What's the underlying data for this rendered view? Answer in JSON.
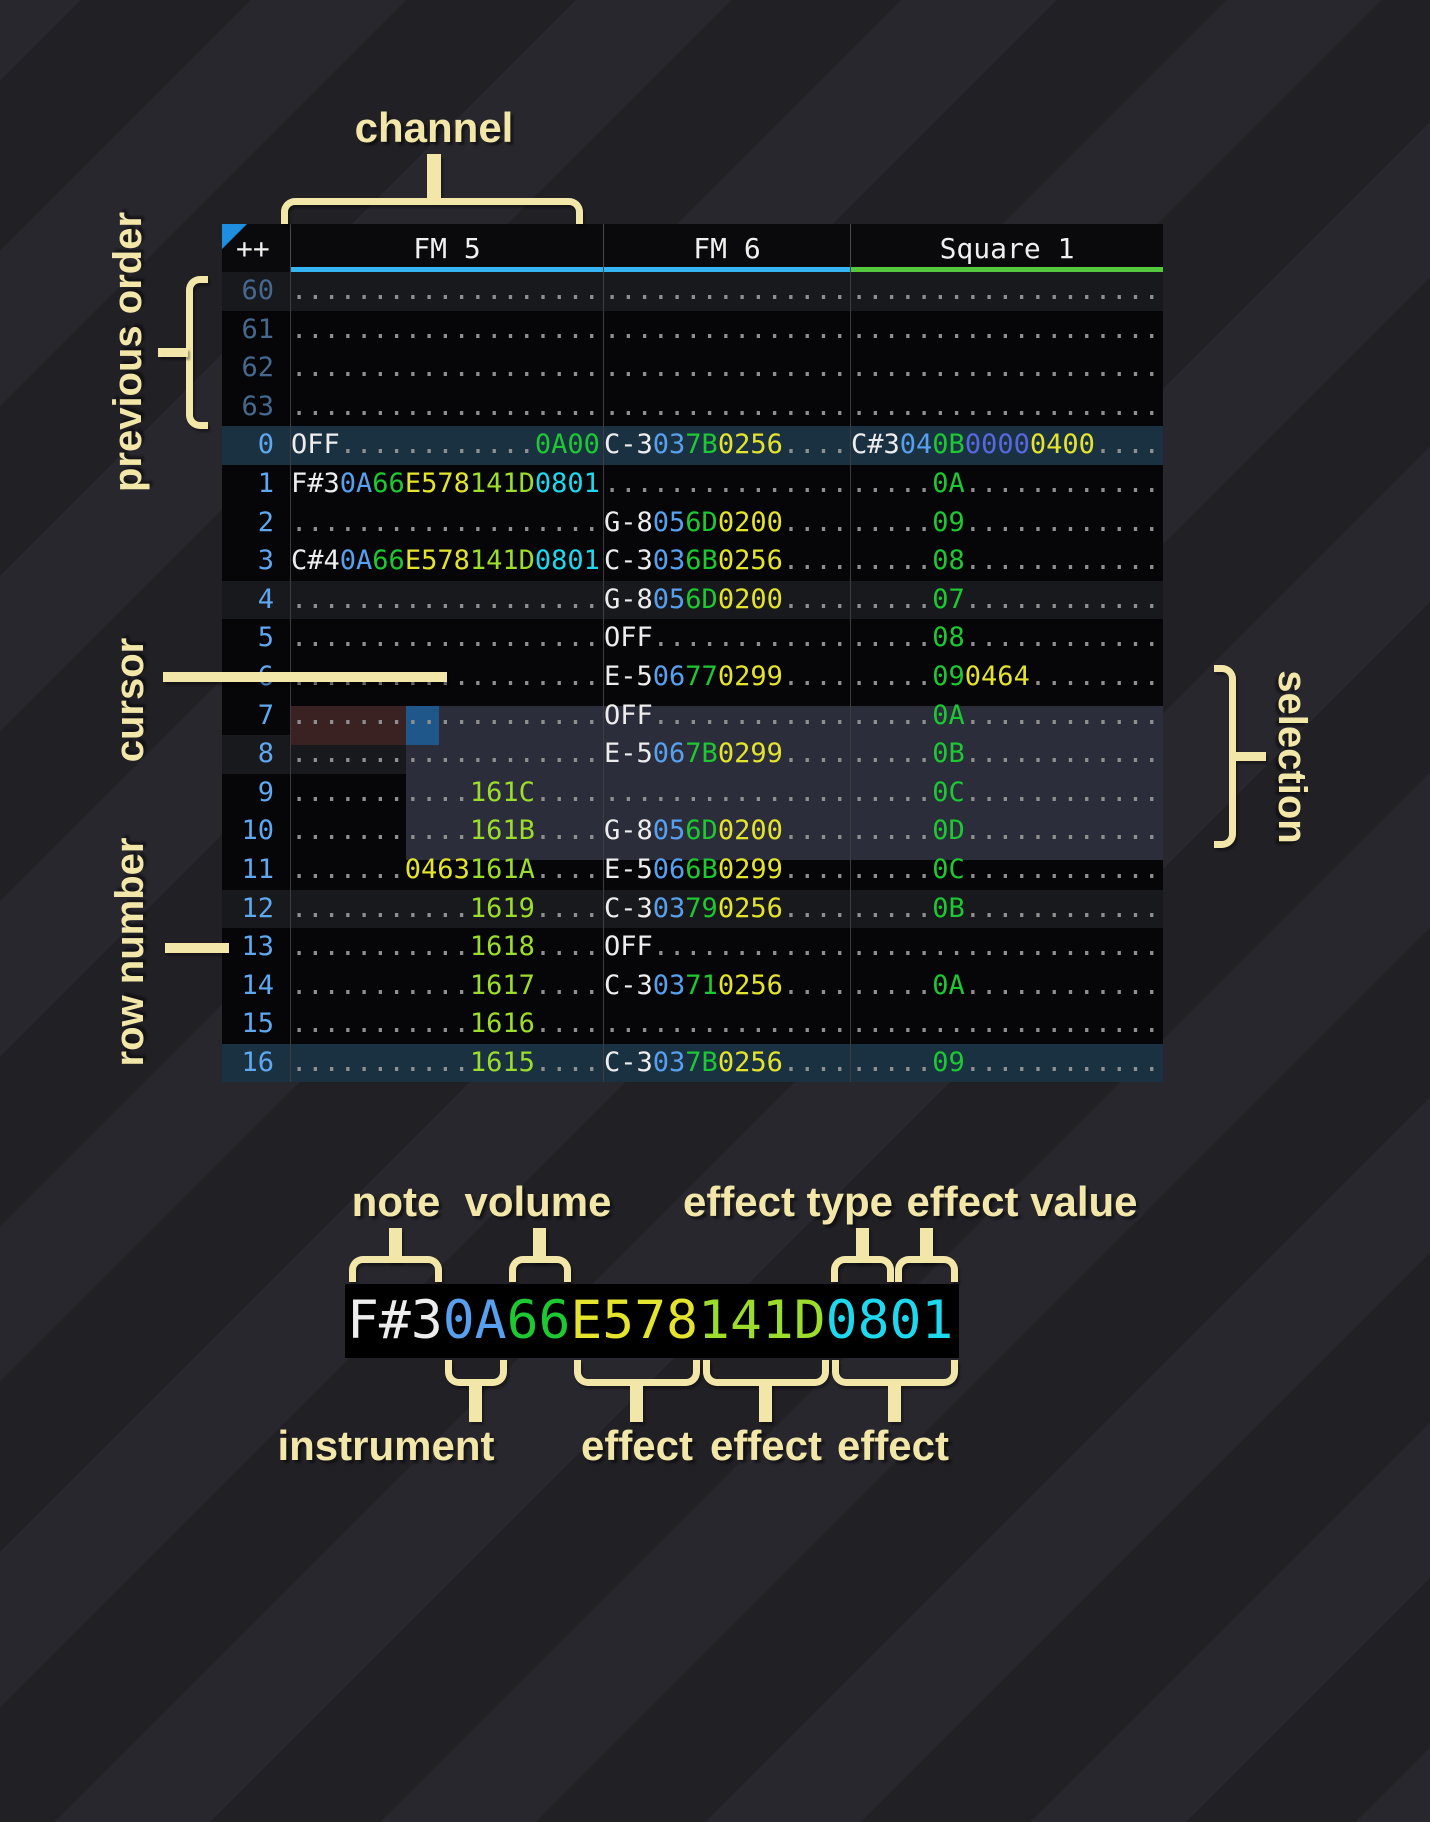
{
  "annotations": {
    "channel": "channel",
    "previous_order": "previous order",
    "cursor": "cursor",
    "row_number": "row number",
    "selection": "selection",
    "note": "note",
    "volume": "volume",
    "effect_type": "effect type",
    "effect_value": "effect value",
    "instrument": "instrument",
    "effect1": "effect",
    "effect2": "effect",
    "effect3": "effect"
  },
  "colors": {
    "accent_annotation": "#f2e7a9",
    "row_number": "#5fa8f0",
    "row_number_prev": "#45698e",
    "note": "#ededed",
    "instrument": "#58a0ee",
    "volume": "#1dc832",
    "effect_yellow": "#e4e42e",
    "effect_green": "#9cdc2c",
    "effect_cyan": "#1ed8ee",
    "effect_indigo": "#5668dc",
    "empty_dot": "#8f8f8f",
    "selection_bg": "#2b2d3b",
    "cursor_bg": "#20578a",
    "cursor_row_bg": "#3a2222",
    "row_hl4_bg": "#18191c",
    "row_hl16_bg": "#1a3142",
    "row_bg": "#060608",
    "table_header_bg": "#0a0a0c",
    "grid_line": "#4a4a4a",
    "corner_triangle": "#1e8fe0",
    "underline_fm": "#35b5f2",
    "underline_square": "#55c83e"
  },
  "pattern": {
    "corner": "++",
    "channels": [
      {
        "name": "FM 5",
        "underline": "#35b5f2"
      },
      {
        "name": "FM 6",
        "underline": "#35b5f2"
      },
      {
        "name": "Square 1",
        "underline": "#55c83e"
      }
    ],
    "rows": [
      {
        "num": "60",
        "prev": true,
        "hl": "hl4",
        "cells": [
          [
            [
              "...................",
              "d"
            ]
          ],
          [
            [
              "...............",
              "d"
            ]
          ],
          [
            [
              "...................",
              "d"
            ]
          ]
        ]
      },
      {
        "num": "61",
        "prev": true,
        "hl": "",
        "cells": [
          [
            [
              "...................",
              "d"
            ]
          ],
          [
            [
              "...............",
              "d"
            ]
          ],
          [
            [
              "...................",
              "d"
            ]
          ]
        ]
      },
      {
        "num": "62",
        "prev": true,
        "hl": "",
        "cells": [
          [
            [
              "...................",
              "d"
            ]
          ],
          [
            [
              "...............",
              "d"
            ]
          ],
          [
            [
              "...................",
              "d"
            ]
          ]
        ]
      },
      {
        "num": "63",
        "prev": true,
        "hl": "",
        "cells": [
          [
            [
              "...................",
              "d"
            ]
          ],
          [
            [
              "...............",
              "d"
            ]
          ],
          [
            [
              "...................",
              "d"
            ]
          ]
        ]
      },
      {
        "num": "0",
        "prev": false,
        "hl": "hl16",
        "cells": [
          [
            [
              "OFF",
              "n"
            ],
            [
              "............",
              "d"
            ],
            [
              "0A00",
              "v"
            ]
          ],
          [
            [
              "C-3",
              "n"
            ],
            [
              "03",
              "i"
            ],
            [
              "7B",
              "v"
            ],
            [
              "0256",
              "y"
            ],
            [
              "....",
              "d"
            ]
          ],
          [
            [
              "C#3",
              "n"
            ],
            [
              "04",
              "i"
            ],
            [
              "0B",
              "v"
            ],
            [
              "0000",
              "p"
            ],
            [
              "0400",
              "y"
            ],
            [
              "....",
              "d"
            ]
          ]
        ]
      },
      {
        "num": "1",
        "prev": false,
        "hl": "",
        "cells": [
          [
            [
              "F#3",
              "n"
            ],
            [
              "0A",
              "i"
            ],
            [
              "66",
              "v"
            ],
            [
              "E578",
              "y"
            ],
            [
              "141D",
              "g"
            ],
            [
              "0801",
              "c"
            ]
          ],
          [
            [
              "...............",
              "d"
            ]
          ],
          [
            [
              ".....",
              "d"
            ],
            [
              "0A",
              "v"
            ],
            [
              "............",
              "d"
            ]
          ]
        ]
      },
      {
        "num": "2",
        "prev": false,
        "hl": "",
        "cells": [
          [
            [
              "...................",
              "d"
            ]
          ],
          [
            [
              "G-8",
              "n"
            ],
            [
              "05",
              "i"
            ],
            [
              "6D",
              "v"
            ],
            [
              "0200",
              "y"
            ],
            [
              "....",
              "d"
            ]
          ],
          [
            [
              ".....",
              "d"
            ],
            [
              "09",
              "v"
            ],
            [
              "............",
              "d"
            ]
          ]
        ]
      },
      {
        "num": "3",
        "prev": false,
        "hl": "",
        "cells": [
          [
            [
              "C#4",
              "n"
            ],
            [
              "0A",
              "i"
            ],
            [
              "66",
              "v"
            ],
            [
              "E578",
              "y"
            ],
            [
              "141D",
              "g"
            ],
            [
              "0801",
              "c"
            ]
          ],
          [
            [
              "C-3",
              "n"
            ],
            [
              "03",
              "i"
            ],
            [
              "6B",
              "v"
            ],
            [
              "0256",
              "y"
            ],
            [
              "....",
              "d"
            ]
          ],
          [
            [
              ".....",
              "d"
            ],
            [
              "08",
              "v"
            ],
            [
              "............",
              "d"
            ]
          ]
        ]
      },
      {
        "num": "4",
        "prev": false,
        "hl": "hl4",
        "cells": [
          [
            [
              "...................",
              "d"
            ]
          ],
          [
            [
              "G-8",
              "n"
            ],
            [
              "05",
              "i"
            ],
            [
              "6D",
              "v"
            ],
            [
              "0200",
              "y"
            ],
            [
              "....",
              "d"
            ]
          ],
          [
            [
              ".....",
              "d"
            ],
            [
              "07",
              "v"
            ],
            [
              "............",
              "d"
            ]
          ]
        ]
      },
      {
        "num": "5",
        "prev": false,
        "hl": "",
        "cells": [
          [
            [
              "...................",
              "d"
            ]
          ],
          [
            [
              "OFF",
              "n"
            ],
            [
              "............",
              "d"
            ]
          ],
          [
            [
              ".....",
              "d"
            ],
            [
              "08",
              "v"
            ],
            [
              "............",
              "d"
            ]
          ]
        ]
      },
      {
        "num": "6",
        "prev": false,
        "hl": "",
        "cells": [
          [
            [
              "...................",
              "d"
            ]
          ],
          [
            [
              "E-5",
              "n"
            ],
            [
              "06",
              "i"
            ],
            [
              "77",
              "v"
            ],
            [
              "0299",
              "y"
            ],
            [
              "....",
              "d"
            ]
          ],
          [
            [
              ".....",
              "d"
            ],
            [
              "09",
              "v"
            ],
            [
              "0464",
              "y"
            ],
            [
              "........",
              "d"
            ]
          ]
        ]
      },
      {
        "num": "7",
        "prev": false,
        "hl": "",
        "cells": [
          [
            [
              "...................",
              "d"
            ]
          ],
          [
            [
              "OFF",
              "n"
            ],
            [
              "............",
              "d"
            ]
          ],
          [
            [
              ".....",
              "d"
            ],
            [
              "0A",
              "v"
            ],
            [
              "............",
              "d"
            ]
          ]
        ]
      },
      {
        "num": "8",
        "prev": false,
        "hl": "hl4",
        "cells": [
          [
            [
              "...................",
              "d"
            ]
          ],
          [
            [
              "E-5",
              "n"
            ],
            [
              "06",
              "i"
            ],
            [
              "7B",
              "v"
            ],
            [
              "0299",
              "y"
            ],
            [
              "....",
              "d"
            ]
          ],
          [
            [
              ".....",
              "d"
            ],
            [
              "0B",
              "v"
            ],
            [
              "............",
              "d"
            ]
          ]
        ]
      },
      {
        "num": "9",
        "prev": false,
        "hl": "",
        "cells": [
          [
            [
              "...........",
              "d"
            ],
            [
              "161C",
              "g"
            ],
            [
              "....",
              "d"
            ]
          ],
          [
            [
              "...............",
              "d"
            ]
          ],
          [
            [
              ".....",
              "d"
            ],
            [
              "0C",
              "v"
            ],
            [
              "............",
              "d"
            ]
          ]
        ]
      },
      {
        "num": "10",
        "prev": false,
        "hl": "",
        "cells": [
          [
            [
              "...........",
              "d"
            ],
            [
              "161B",
              "g"
            ],
            [
              "....",
              "d"
            ]
          ],
          [
            [
              "G-8",
              "n"
            ],
            [
              "05",
              "i"
            ],
            [
              "6D",
              "v"
            ],
            [
              "0200",
              "y"
            ],
            [
              "....",
              "d"
            ]
          ],
          [
            [
              ".....",
              "d"
            ],
            [
              "0D",
              "v"
            ],
            [
              "............",
              "d"
            ]
          ]
        ]
      },
      {
        "num": "11",
        "prev": false,
        "hl": "",
        "cells": [
          [
            [
              ".......",
              "d"
            ],
            [
              "0463",
              "y"
            ],
            [
              "161A",
              "g"
            ],
            [
              "....",
              "d"
            ]
          ],
          [
            [
              "E-5",
              "n"
            ],
            [
              "06",
              "i"
            ],
            [
              "6B",
              "v"
            ],
            [
              "0299",
              "y"
            ],
            [
              "....",
              "d"
            ]
          ],
          [
            [
              ".....",
              "d"
            ],
            [
              "0C",
              "v"
            ],
            [
              "............",
              "d"
            ]
          ]
        ]
      },
      {
        "num": "12",
        "prev": false,
        "hl": "hl4",
        "cells": [
          [
            [
              "...........",
              "d"
            ],
            [
              "1619",
              "g"
            ],
            [
              "....",
              "d"
            ]
          ],
          [
            [
              "C-3",
              "n"
            ],
            [
              "03",
              "i"
            ],
            [
              "79",
              "v"
            ],
            [
              "0256",
              "y"
            ],
            [
              "....",
              "d"
            ]
          ],
          [
            [
              ".....",
              "d"
            ],
            [
              "0B",
              "v"
            ],
            [
              "............",
              "d"
            ]
          ]
        ]
      },
      {
        "num": "13",
        "prev": false,
        "hl": "",
        "cells": [
          [
            [
              "...........",
              "d"
            ],
            [
              "1618",
              "g"
            ],
            [
              "....",
              "d"
            ]
          ],
          [
            [
              "OFF",
              "n"
            ],
            [
              "............",
              "d"
            ]
          ],
          [
            [
              "...................",
              "d"
            ]
          ]
        ]
      },
      {
        "num": "14",
        "prev": false,
        "hl": "",
        "cells": [
          [
            [
              "...........",
              "d"
            ],
            [
              "1617",
              "g"
            ],
            [
              "....",
              "d"
            ]
          ],
          [
            [
              "C-3",
              "n"
            ],
            [
              "03",
              "i"
            ],
            [
              "71",
              "v"
            ],
            [
              "0256",
              "y"
            ],
            [
              "....",
              "d"
            ]
          ],
          [
            [
              ".....",
              "d"
            ],
            [
              "0A",
              "v"
            ],
            [
              "............",
              "d"
            ]
          ]
        ]
      },
      {
        "num": "15",
        "prev": false,
        "hl": "",
        "cells": [
          [
            [
              "...........",
              "d"
            ],
            [
              "1616",
              "g"
            ],
            [
              "....",
              "d"
            ]
          ],
          [
            [
              "...............",
              "d"
            ]
          ],
          [
            [
              "...................",
              "d"
            ]
          ]
        ]
      },
      {
        "num": "16",
        "prev": false,
        "hl": "hl16",
        "cells": [
          [
            [
              "...........",
              "d"
            ],
            [
              "1615",
              "g"
            ],
            [
              "....",
              "d"
            ]
          ],
          [
            [
              "C-3",
              "n"
            ],
            [
              "03",
              "i"
            ],
            [
              "7B",
              "v"
            ],
            [
              "0256",
              "y"
            ],
            [
              "....",
              "d"
            ]
          ],
          [
            [
              ".....",
              "d"
            ],
            [
              "09",
              "v"
            ],
            [
              "............",
              "d"
            ]
          ]
        ]
      }
    ]
  },
  "example": {
    "segments": [
      [
        "F#3",
        "n"
      ],
      [
        "0A",
        "i"
      ],
      [
        "66",
        "v"
      ],
      [
        "E578",
        "y"
      ],
      [
        "141D",
        "g"
      ],
      [
        "0801",
        "c"
      ]
    ]
  }
}
